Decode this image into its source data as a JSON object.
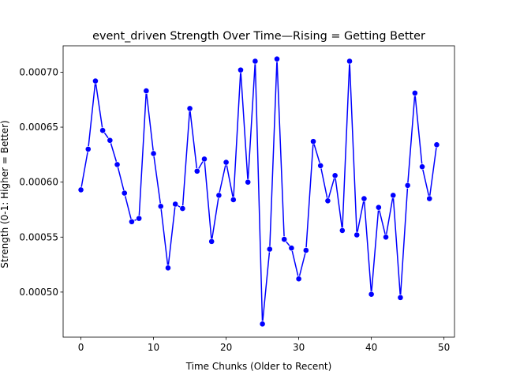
{
  "chart_data": {
    "type": "line",
    "title": "event_driven Strength Over Time—Rising = Getting Better",
    "xlabel": "Time Chunks (Older to Recent)",
    "ylabel": "Strength (0-1: Higher = Better)",
    "xlim": [
      -2.45,
      51.45
    ],
    "ylim": [
      0.000459,
      0.000724
    ],
    "xticks": [
      0,
      10,
      20,
      30,
      40,
      50
    ],
    "yticks": [
      0.0005,
      0.00055,
      0.0006,
      0.00065,
      0.0007
    ],
    "ytick_labels": [
      "0.00050",
      "0.00055",
      "0.00060",
      "0.00065",
      "0.00070"
    ],
    "grid": false,
    "series": [
      {
        "color": "#0000ff",
        "marker": "circle",
        "x": [
          0,
          1,
          2,
          3,
          4,
          5,
          6,
          7,
          8,
          9,
          10,
          11,
          12,
          13,
          14,
          15,
          16,
          17,
          18,
          19,
          20,
          21,
          22,
          23,
          24,
          25,
          26,
          27,
          28,
          29,
          30,
          31,
          32,
          33,
          34,
          35,
          36,
          37,
          38,
          39,
          40,
          41,
          42,
          43,
          44,
          45,
          46,
          47,
          48,
          49
        ],
        "y": [
          0.000593,
          0.00063,
          0.000692,
          0.000647,
          0.000638,
          0.000616,
          0.00059,
          0.000564,
          0.000567,
          0.000683,
          0.000626,
          0.000578,
          0.000522,
          0.00058,
          0.000576,
          0.000667,
          0.00061,
          0.000621,
          0.000546,
          0.000588,
          0.000618,
          0.000584,
          0.000702,
          0.0006,
          0.00071,
          0.000471,
          0.000539,
          0.000712,
          0.000548,
          0.00054,
          0.000512,
          0.000538,
          0.000637,
          0.000615,
          0.000583,
          0.000606,
          0.000556,
          0.00071,
          0.000552,
          0.000585,
          0.000498,
          0.000577,
          0.00055,
          0.000588,
          0.000495,
          0.000597,
          0.000681,
          0.000614,
          0.000585,
          0.000634
        ]
      }
    ]
  }
}
